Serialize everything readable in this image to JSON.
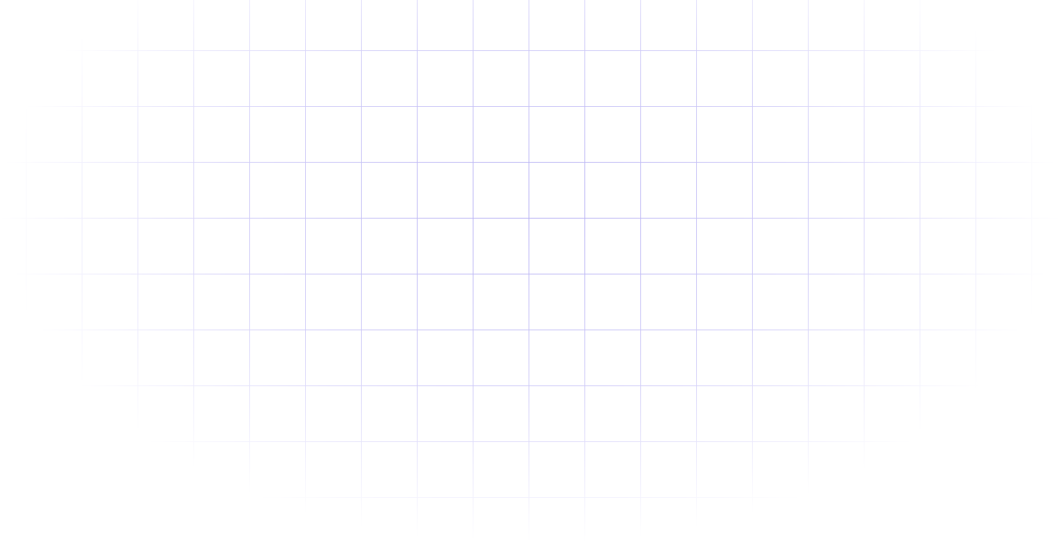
{
  "background": {
    "grid_color": "#a9a2f2"
  }
}
